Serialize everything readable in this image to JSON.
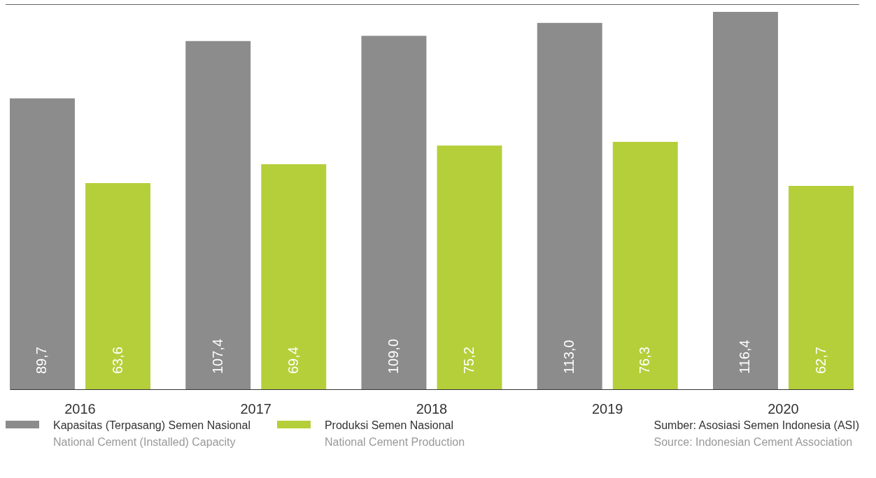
{
  "chart_data": {
    "type": "bar",
    "categories": [
      "2016",
      "2017",
      "2018",
      "2019",
      "2020"
    ],
    "series": [
      {
        "name": "Kapasitas (Terpasang) Semen Nasional\nNational Cement (Installed) Capacity",
        "color": "#8c8c8c",
        "values": [
          89.7,
          107.4,
          109.0,
          113.0,
          116.4
        ],
        "value_labels": [
          "89,7",
          "107,4",
          "109,0",
          "113,0",
          "116,4"
        ]
      },
      {
        "name": "Produksi Semen Nasional\nNational Cement Production",
        "color": "#b5cf3a",
        "values": [
          63.6,
          69.4,
          75.2,
          76.3,
          62.7
        ],
        "value_labels": [
          "63,6",
          "69,4",
          "75,2",
          "76,3",
          "62,7"
        ]
      }
    ],
    "legend": "bottom",
    "annotations": [
      "Sumber: Asosiasi Semen Indonesia (ASI)",
      "Source: Indonesian Cement Association"
    ]
  }
}
